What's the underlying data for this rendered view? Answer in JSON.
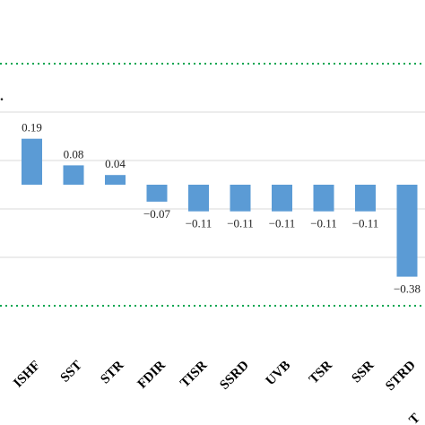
{
  "chart_data": {
    "type": "bar",
    "categories": [
      "ISHF",
      "SST",
      "STR",
      "FDIR",
      "TISR",
      "SSRD",
      "UVB",
      "TSR",
      "SSR",
      "STRD"
    ],
    "values": [
      0.19,
      0.08,
      0.04,
      -0.07,
      -0.11,
      -0.11,
      -0.11,
      -0.11,
      -0.11,
      -0.38
    ],
    "value_labels": [
      "0.19",
      "0.08",
      "0.04",
      "−0.07",
      "−0.11",
      "−0.11",
      "−0.11",
      "−0.11",
      "−0.11",
      "−0.38"
    ],
    "reference_lines": [
      0.5,
      -0.5
    ],
    "ylim": [
      -0.7,
      0.6
    ],
    "grid_y": [
      0.3,
      0.1,
      -0.1,
      -0.3
    ],
    "grid": true,
    "bar_color": "#5b9bd5",
    "reference_line_color": "#00a651"
  }
}
